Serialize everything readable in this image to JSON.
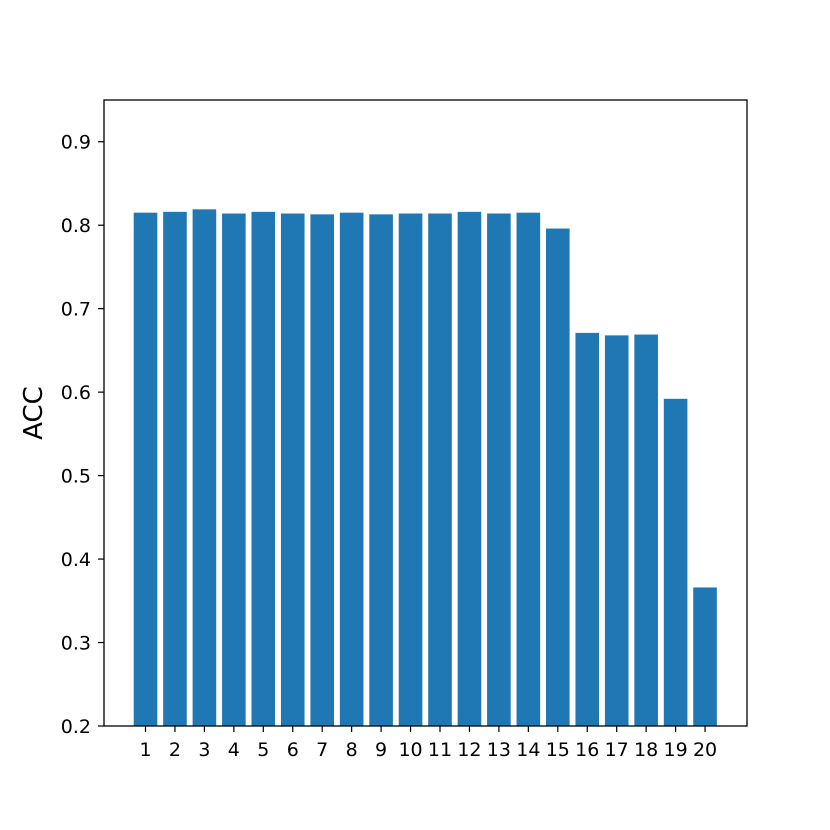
{
  "chart_data": {
    "type": "bar",
    "categories": [
      "1",
      "2",
      "3",
      "4",
      "5",
      "6",
      "7",
      "8",
      "9",
      "10",
      "11",
      "12",
      "13",
      "14",
      "15",
      "16",
      "17",
      "18",
      "19",
      "20"
    ],
    "values": [
      0.815,
      0.816,
      0.819,
      0.814,
      0.816,
      0.814,
      0.813,
      0.815,
      0.813,
      0.814,
      0.814,
      0.816,
      0.814,
      0.815,
      0.796,
      0.671,
      0.668,
      0.669,
      0.592,
      0.366
    ],
    "xlabel": "",
    "ylabel": "ACC",
    "ylim": [
      0.2,
      0.95
    ],
    "yticks": [
      "0.2",
      "0.3",
      "0.4",
      "0.5",
      "0.6",
      "0.7",
      "0.8",
      "0.9"
    ],
    "grid": false,
    "bar_color": "#1f77b4"
  }
}
